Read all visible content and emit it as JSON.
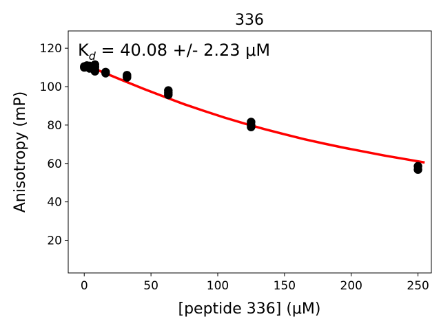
{
  "chart_data": {
    "type": "scatter",
    "title": "336",
    "xlabel": "[peptide 336] (μM)",
    "ylabel": "Anisotropy (mP)",
    "annotation": {
      "prefix": "K",
      "subscript": "d",
      "text": " = 40.08 +/- 2.23 μM"
    },
    "xlim": [
      -12,
      260
    ],
    "ylim": [
      3,
      129
    ],
    "xticks": [
      0,
      50,
      100,
      150,
      200,
      250
    ],
    "yticks": [
      20,
      40,
      60,
      80,
      100,
      120
    ],
    "grid": false,
    "colors": {
      "points": "#000000",
      "fit": "#ff0000"
    },
    "series": [
      {
        "kind": "points",
        "x": [
          0,
          0,
          2,
          2,
          4,
          4,
          4,
          6,
          6,
          8,
          8,
          8,
          8,
          16,
          16,
          32,
          32,
          32,
          63,
          63,
          63,
          125,
          125,
          125,
          250,
          250
        ],
        "y": [
          110.5,
          110.0,
          111.0,
          110.2,
          110.0,
          109.5,
          110.8,
          109.8,
          110.5,
          111.5,
          110.2,
          108.8,
          108.0,
          107.6,
          107.0,
          106.0,
          105.2,
          104.8,
          98.0,
          96.8,
          95.7,
          81.6,
          80.0,
          79.0,
          58.6,
          56.8
        ]
      },
      {
        "kind": "fit",
        "x": [
          0,
          15,
          30,
          45,
          60,
          75,
          90,
          105,
          120,
          135,
          150,
          165,
          180,
          195,
          210,
          225,
          240,
          255
        ],
        "y": [
          111.5,
          107.2,
          102.9,
          98.7,
          94.7,
          90.8,
          87.3,
          83.9,
          80.8,
          77.9,
          75.2,
          72.6,
          70.3,
          68.1,
          66.1,
          64.1,
          62.3,
          60.5
        ]
      }
    ]
  }
}
